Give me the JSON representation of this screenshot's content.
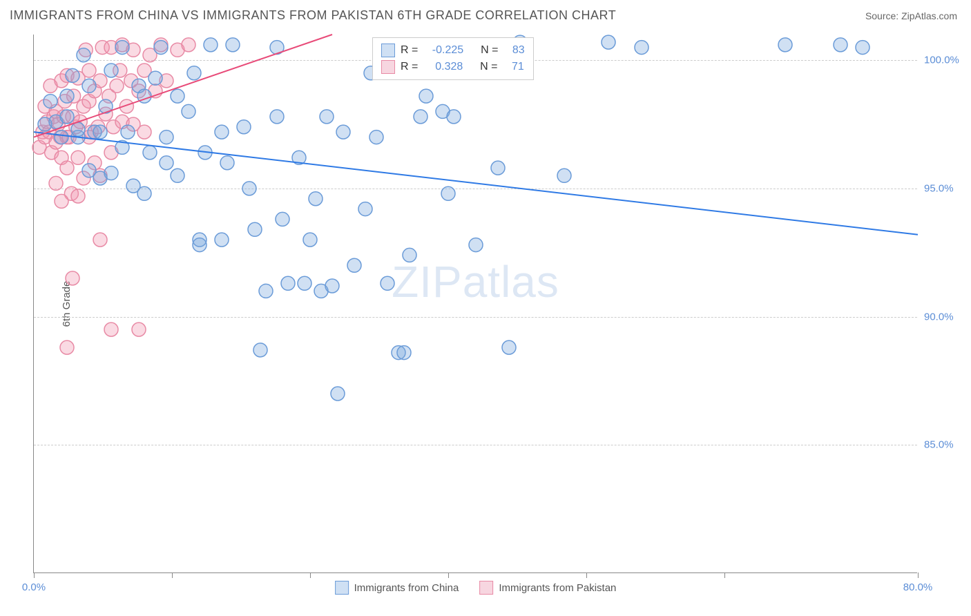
{
  "header": {
    "title": "IMMIGRANTS FROM CHINA VS IMMIGRANTS FROM PAKISTAN 6TH GRADE CORRELATION CHART",
    "source": "Source: ZipAtlas.com"
  },
  "chart": {
    "type": "scatter",
    "y_axis_label": "6th Grade",
    "watermark": "ZIPatlas",
    "background_color": "#ffffff",
    "grid_color": "#cccccc",
    "axis_color": "#888888",
    "plot": {
      "x_min": 0,
      "x_max": 80,
      "y_min": 80,
      "y_max": 101
    },
    "y_ticks": [
      {
        "value": 85,
        "label": "85.0%"
      },
      {
        "value": 90,
        "label": "90.0%"
      },
      {
        "value": 95,
        "label": "95.0%"
      },
      {
        "value": 100,
        "label": "100.0%"
      }
    ],
    "x_ticks": [
      {
        "value": 0,
        "label": "0.0%"
      },
      {
        "value": 12.5,
        "label": ""
      },
      {
        "value": 25,
        "label": ""
      },
      {
        "value": 37.5,
        "label": ""
      },
      {
        "value": 50,
        "label": ""
      },
      {
        "value": 62.5,
        "label": ""
      },
      {
        "value": 80,
        "label": "80.0%"
      }
    ],
    "series": [
      {
        "id": "china",
        "label": "Immigrants from China",
        "R": "-0.225",
        "N": "83",
        "marker_fill": "rgba(120,165,220,0.35)",
        "marker_stroke": "#6a9bd8",
        "marker_radius": 10,
        "line_color": "#2f7ae5",
        "line_width": 2,
        "swatch_fill": "#cfe0f4",
        "swatch_border": "#6a9bd8",
        "trend": {
          "x1": 0,
          "y1": 97.2,
          "x2": 80,
          "y2": 93.2
        },
        "points": [
          [
            1,
            97.5
          ],
          [
            1.5,
            98.4
          ],
          [
            2,
            97.6
          ],
          [
            2.5,
            97.0
          ],
          [
            3,
            97.8
          ],
          [
            3,
            98.6
          ],
          [
            3.5,
            99.4
          ],
          [
            4,
            97.0
          ],
          [
            4,
            97.3
          ],
          [
            4.5,
            100.2
          ],
          [
            5,
            95.7
          ],
          [
            5,
            99.0
          ],
          [
            5.5,
            97.2
          ],
          [
            6,
            95.4
          ],
          [
            6,
            97.2
          ],
          [
            6.5,
            98.2
          ],
          [
            7,
            95.6
          ],
          [
            7,
            99.6
          ],
          [
            8,
            96.6
          ],
          [
            8,
            100.5
          ],
          [
            8.5,
            97.2
          ],
          [
            9,
            95.1
          ],
          [
            9.5,
            99.0
          ],
          [
            10,
            94.8
          ],
          [
            10,
            98.6
          ],
          [
            10.5,
            96.4
          ],
          [
            11,
            99.3
          ],
          [
            11.5,
            100.5
          ],
          [
            12,
            97.0
          ],
          [
            12,
            96.0
          ],
          [
            13,
            98.6
          ],
          [
            13,
            95.5
          ],
          [
            14,
            98.0
          ],
          [
            14.5,
            99.5
          ],
          [
            15,
            93.0
          ],
          [
            15,
            92.8
          ],
          [
            15.5,
            96.4
          ],
          [
            16,
            100.6
          ],
          [
            17,
            93.0
          ],
          [
            17,
            97.2
          ],
          [
            17.5,
            96.0
          ],
          [
            18,
            100.6
          ],
          [
            19,
            97.4
          ],
          [
            19.5,
            95.0
          ],
          [
            20,
            93.4
          ],
          [
            20.5,
            88.7
          ],
          [
            21,
            91.0
          ],
          [
            22,
            100.5
          ],
          [
            22,
            97.8
          ],
          [
            22.5,
            93.8
          ],
          [
            23,
            91.3
          ],
          [
            24,
            96.2
          ],
          [
            24.5,
            91.3
          ],
          [
            25,
            93.0
          ],
          [
            25.5,
            94.6
          ],
          [
            26,
            91.0
          ],
          [
            26.5,
            97.8
          ],
          [
            27,
            91.2
          ],
          [
            27.5,
            87.0
          ],
          [
            28,
            97.2
          ],
          [
            29,
            92.0
          ],
          [
            30,
            94.2
          ],
          [
            30.5,
            99.5
          ],
          [
            31,
            97.0
          ],
          [
            32,
            91.3
          ],
          [
            33,
            88.6
          ],
          [
            33.5,
            88.6
          ],
          [
            34,
            92.4
          ],
          [
            35,
            97.8
          ],
          [
            35.5,
            98.6
          ],
          [
            37,
            98.0
          ],
          [
            37.5,
            94.8
          ],
          [
            38,
            97.8
          ],
          [
            40,
            92.8
          ],
          [
            42,
            95.8
          ],
          [
            43,
            88.8
          ],
          [
            44,
            100.7
          ],
          [
            48,
            95.5
          ],
          [
            52,
            100.7
          ],
          [
            55,
            100.5
          ],
          [
            68,
            100.6
          ],
          [
            73,
            100.6
          ],
          [
            75,
            100.5
          ]
        ]
      },
      {
        "id": "pakistan",
        "label": "Immigrants from Pakistan",
        "R": "0.328",
        "N": "71",
        "marker_fill": "rgba(240,150,175,0.35)",
        "marker_stroke": "#e88aa5",
        "marker_radius": 10,
        "line_color": "#e84a78",
        "line_width": 2,
        "swatch_fill": "#f7d6e0",
        "swatch_border": "#e88aa5",
        "trend": {
          "x1": 0,
          "y1": 97.0,
          "x2": 27,
          "y2": 101
        },
        "points": [
          [
            0.5,
            96.6
          ],
          [
            0.8,
            97.2
          ],
          [
            1,
            98.2
          ],
          [
            1,
            97.0
          ],
          [
            1.2,
            97.6
          ],
          [
            1.4,
            97.2
          ],
          [
            1.5,
            99.0
          ],
          [
            1.6,
            96.4
          ],
          [
            1.8,
            97.8
          ],
          [
            2,
            96.8
          ],
          [
            2,
            98.0
          ],
          [
            2,
            95.2
          ],
          [
            2.2,
            97.5
          ],
          [
            2.4,
            97.0
          ],
          [
            2.5,
            99.2
          ],
          [
            2.5,
            96.2
          ],
          [
            2.7,
            97.8
          ],
          [
            2.8,
            98.4
          ],
          [
            3,
            97.0
          ],
          [
            3,
            95.8
          ],
          [
            3,
            99.4
          ],
          [
            3.2,
            97.0
          ],
          [
            3.4,
            94.8
          ],
          [
            3.5,
            97.8
          ],
          [
            3.6,
            98.6
          ],
          [
            3.8,
            97.4
          ],
          [
            4,
            96.2
          ],
          [
            4,
            99.3
          ],
          [
            4,
            94.7
          ],
          [
            4.2,
            97.6
          ],
          [
            4.5,
            98.2
          ],
          [
            4.5,
            95.4
          ],
          [
            4.7,
            100.4
          ],
          [
            5,
            97.0
          ],
          [
            5,
            98.4
          ],
          [
            5,
            99.6
          ],
          [
            5.2,
            97.2
          ],
          [
            5.5,
            96.0
          ],
          [
            5.5,
            98.8
          ],
          [
            5.8,
            97.4
          ],
          [
            6,
            99.2
          ],
          [
            6,
            95.5
          ],
          [
            6,
            93.0
          ],
          [
            6.2,
            100.5
          ],
          [
            6.5,
            97.9
          ],
          [
            6.8,
            98.6
          ],
          [
            7,
            100.5
          ],
          [
            7,
            96.4
          ],
          [
            7,
            89.5
          ],
          [
            7.2,
            97.4
          ],
          [
            7.5,
            99.0
          ],
          [
            7.8,
            99.6
          ],
          [
            8,
            100.6
          ],
          [
            8,
            97.6
          ],
          [
            8.4,
            98.2
          ],
          [
            8.8,
            99.2
          ],
          [
            9,
            100.4
          ],
          [
            9,
            97.5
          ],
          [
            9.5,
            98.8
          ],
          [
            10,
            99.6
          ],
          [
            10,
            97.2
          ],
          [
            10.5,
            100.2
          ],
          [
            11,
            98.8
          ],
          [
            11.5,
            100.6
          ],
          [
            12,
            99.2
          ],
          [
            13,
            100.4
          ],
          [
            14,
            100.6
          ],
          [
            3,
            88.8
          ],
          [
            3.5,
            91.5
          ],
          [
            2.5,
            94.5
          ],
          [
            9.5,
            89.5
          ]
        ]
      }
    ]
  }
}
